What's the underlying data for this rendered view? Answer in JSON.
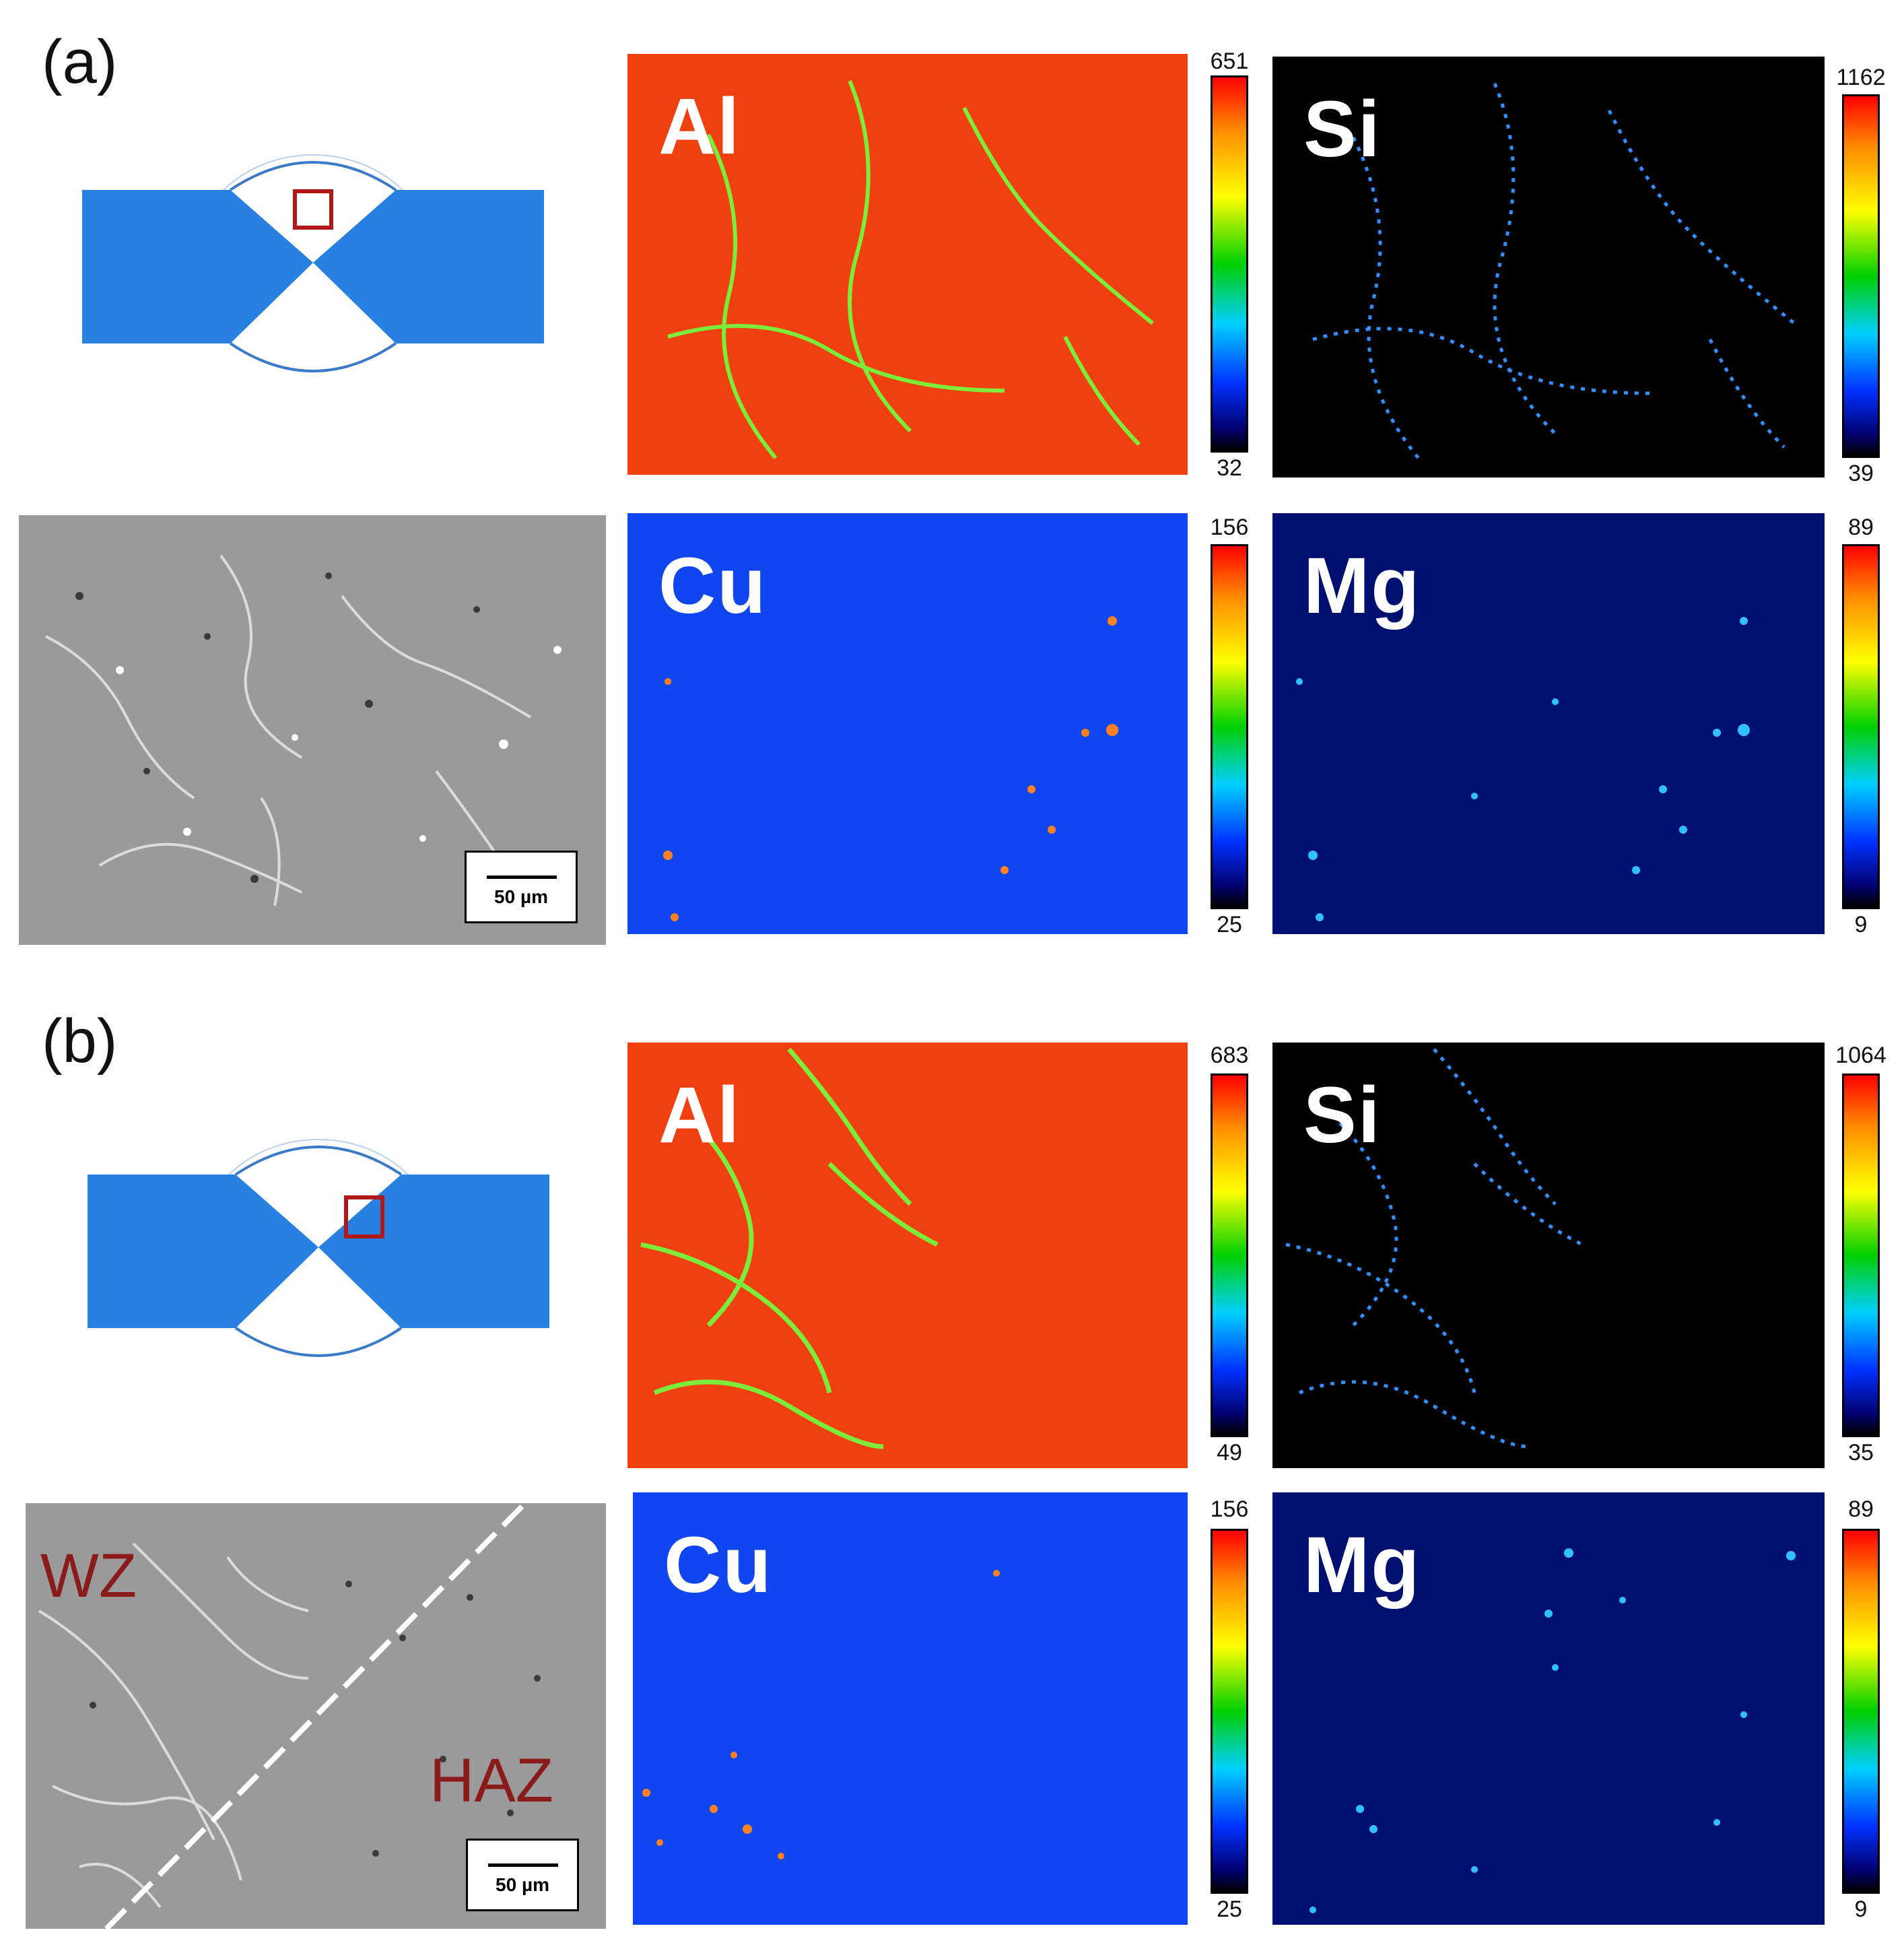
{
  "panels": [
    {
      "label": "(a)",
      "maps": [
        {
          "element": "Al",
          "max": "651",
          "min": "32",
          "base": "#f04010",
          "dot": "#70ff40"
        },
        {
          "element": "Si",
          "max": "1162",
          "min": "39",
          "base": "#000000",
          "dot": "#3090ff"
        },
        {
          "element": "Cu",
          "max": "156",
          "min": "25",
          "base": "#1046f0",
          "dot": "#ff8020"
        },
        {
          "element": "Mg",
          "max": "89",
          "min": "9",
          "base": "#001070",
          "dot": "#30c0ff"
        }
      ],
      "scale": "50 µm"
    },
    {
      "label": "(b)",
      "maps": [
        {
          "element": "Al",
          "max": "683",
          "min": "49",
          "base": "#f04010",
          "dot": "#70ff40"
        },
        {
          "element": "Si",
          "max": "1064",
          "min": "35",
          "base": "#000000",
          "dot": "#3090ff"
        },
        {
          "element": "Cu",
          "max": "156",
          "min": "25",
          "base": "#1046f0",
          "dot": "#ff8020"
        },
        {
          "element": "Mg",
          "max": "89",
          "min": "9",
          "base": "#001070",
          "dot": "#30c0ff"
        }
      ],
      "scale": "50 µm",
      "zones": {
        "left": "WZ",
        "right": "HAZ"
      }
    }
  ],
  "colors": {
    "plate": "#2880e0",
    "marker": "#b01818",
    "sem_bg": "#9a9a9a"
  }
}
